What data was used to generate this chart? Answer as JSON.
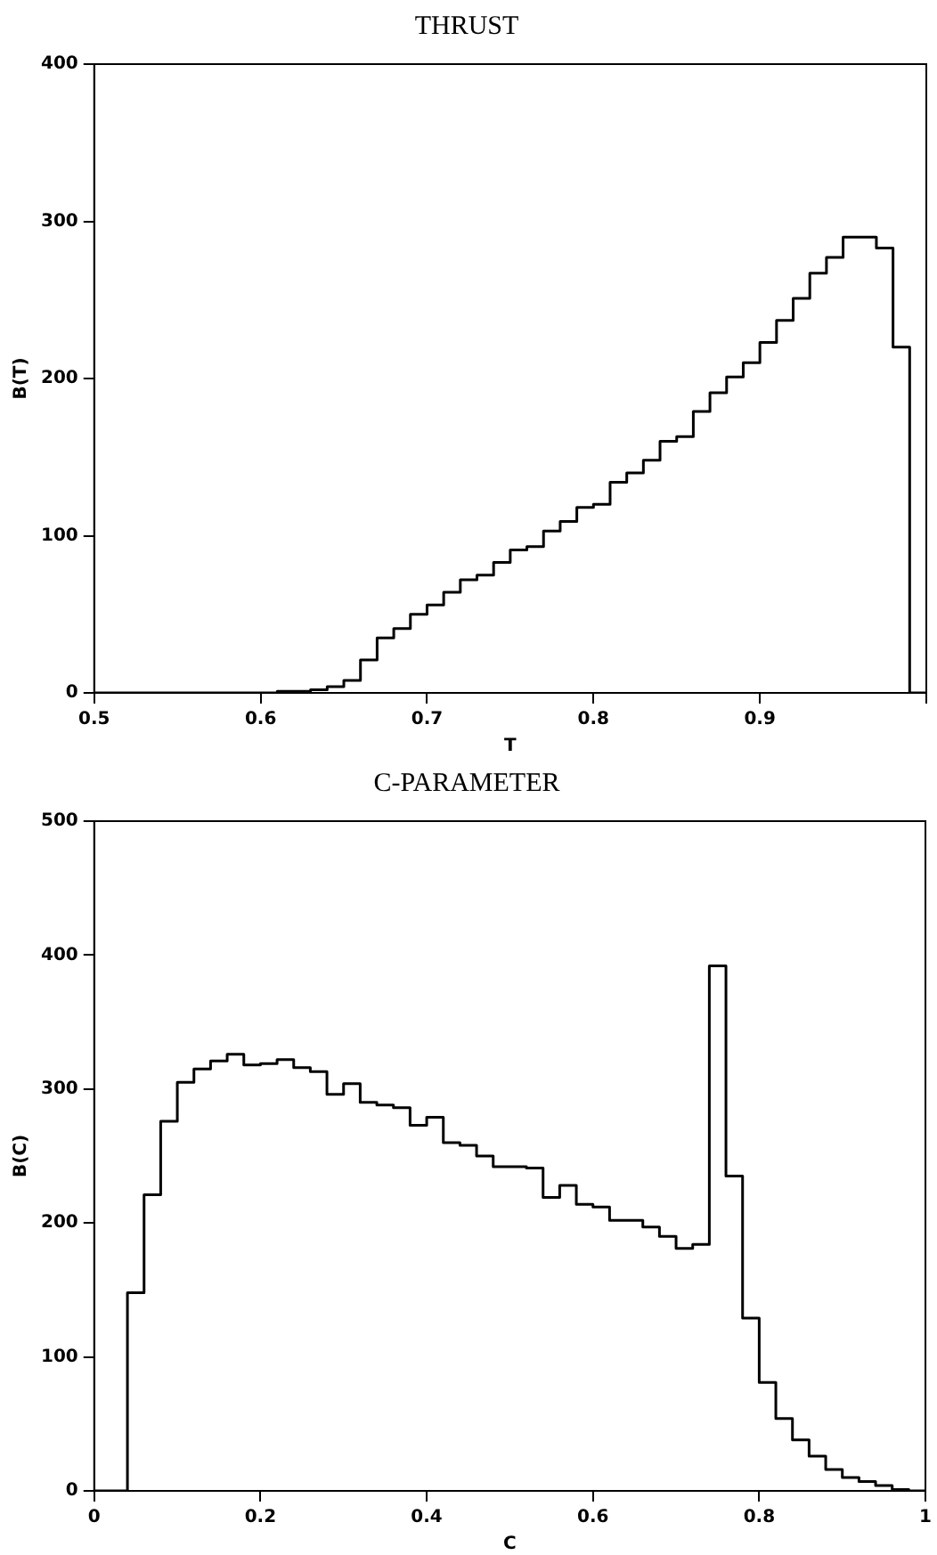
{
  "chart_data": [
    {
      "type": "histogram",
      "title": "THRUST",
      "xlabel": "T",
      "ylabel": "B(T)",
      "color": "#000000",
      "bins": [
        0.5,
        0.51,
        0.52,
        0.53,
        0.54,
        0.55,
        0.56,
        0.57,
        0.58,
        0.59,
        0.6,
        0.61,
        0.62,
        0.63,
        0.64,
        0.65,
        0.66,
        0.67,
        0.68,
        0.69,
        0.7,
        0.71,
        0.72,
        0.73,
        0.74,
        0.75,
        0.76,
        0.77,
        0.78,
        0.79,
        0.8,
        0.81,
        0.82,
        0.83,
        0.84,
        0.85,
        0.86,
        0.87,
        0.88,
        0.89,
        0.9,
        0.91,
        0.92,
        0.93,
        0.94,
        0.95,
        0.96,
        0.97,
        0.98,
        0.99,
        1.0
      ],
      "values": [
        0,
        0,
        0,
        0,
        0,
        0,
        0,
        0,
        0,
        0,
        0,
        1,
        1,
        2,
        4,
        8,
        21,
        35,
        41,
        50,
        56,
        64,
        72,
        75,
        83,
        91,
        93,
        103,
        109,
        118,
        120,
        134,
        140,
        148,
        160,
        163,
        179,
        191,
        201,
        210,
        223,
        237,
        251,
        267,
        277,
        290,
        290,
        283,
        220,
        0
      ],
      "xlim": [
        0.5,
        1.0
      ],
      "xticks": [
        0.5,
        0.6,
        0.7,
        0.8,
        0.9,
        {
          "value": 1.0,
          "label": null
        }
      ],
      "ylim": [
        0,
        400
      ],
      "yticks": [
        0,
        100,
        200,
        300,
        400
      ]
    },
    {
      "type": "histogram",
      "title": "C-PARAMETER",
      "xlabel": "C",
      "ylabel": "B(C)",
      "color": "#000000",
      "bins": [
        0,
        0.02,
        0.04,
        0.06,
        0.08,
        0.1,
        0.12,
        0.14,
        0.16,
        0.18,
        0.2,
        0.22,
        0.24,
        0.26,
        0.28,
        0.3,
        0.32,
        0.34,
        0.36,
        0.38,
        0.4,
        0.42,
        0.44,
        0.46,
        0.48,
        0.5,
        0.52,
        0.54,
        0.56,
        0.58,
        0.6,
        0.62,
        0.64,
        0.66,
        0.68,
        0.7,
        0.72,
        0.74,
        0.76,
        0.78,
        0.8,
        0.82,
        0.84,
        0.86,
        0.88,
        0.9,
        0.92,
        0.94,
        0.96,
        0.98,
        1.0
      ],
      "values": [
        0,
        0,
        148,
        221,
        276,
        305,
        315,
        321,
        326,
        318,
        319,
        322,
        316,
        313,
        296,
        304,
        290,
        288,
        286,
        273,
        279,
        260,
        258,
        250,
        242,
        242,
        241,
        219,
        228,
        214,
        212,
        202,
        202,
        197,
        190,
        181,
        184,
        392,
        235,
        129,
        81,
        54,
        38,
        26,
        16,
        10,
        7,
        4,
        1,
        0
      ],
      "xlim": [
        0,
        1
      ],
      "xticks": [
        0,
        0.2,
        0.4,
        0.6,
        0.8,
        1
      ],
      "ylim": [
        0,
        500
      ],
      "yticks": [
        0,
        100,
        200,
        300,
        400,
        500
      ]
    }
  ]
}
